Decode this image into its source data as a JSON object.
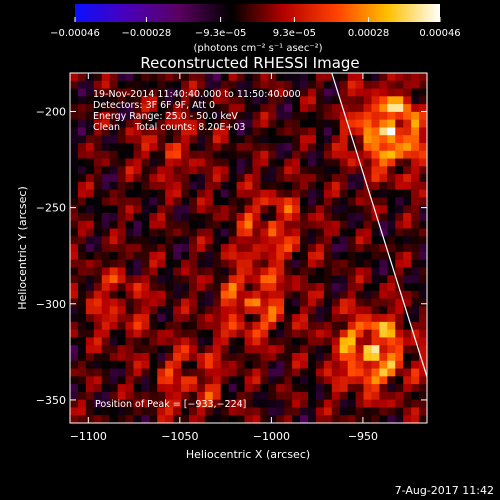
{
  "colorbar": {
    "ticks": [
      "−0.00046",
      "−0.00028",
      "−9.3e−05",
      "9.3e−05",
      "0.00028",
      "0.00046"
    ],
    "tick_values": [
      -0.00046,
      -0.00028,
      -9.3e-05,
      9.3e-05,
      0.00028,
      0.00046
    ],
    "range": [
      -0.00046,
      0.00046
    ],
    "units": "(photons cm⁻² s⁻¹ asec⁻²)",
    "colors": [
      "#0a10ff",
      "#4a00b8",
      "#5a0060",
      "#000000",
      "#b40000",
      "#ff4000",
      "#ffc000",
      "#ffffff"
    ]
  },
  "footer": {
    "date": "7-Aug-2017 11:42"
  },
  "chart_data": {
    "type": "heatmap",
    "title": "Reconstructed RHESSI Image",
    "xlabel": "Heliocentric X (arcsec)",
    "ylabel": "Heliocentric Y (arcsec)",
    "xlim": [
      -1110,
      -915
    ],
    "ylim": [
      -362,
      -180
    ],
    "xticks": [
      -1100,
      -1050,
      -1000,
      -950
    ],
    "yticks": [
      -200,
      -250,
      -300,
      -350
    ],
    "xtick_labels": [
      "−1100",
      "−1050",
      "−1000",
      "−950"
    ],
    "ytick_labels": [
      "−200",
      "−250",
      "−300",
      "−350"
    ],
    "annotations": [
      "19-Nov-2014 11:40:40.000 to 11:50:40.000",
      "Detectors: 3F 6F 9F, Att 0",
      "Energy Range: 25.0 - 50.0 keV",
      "Clean     Total counts: 8.20E+03"
    ],
    "peak_label": "Position of Peak = [−933,−224]",
    "peak": [
      -933,
      -224
    ],
    "bright_sources": [
      {
        "x": -935,
        "y": -210,
        "strength": 1.0
      },
      {
        "x": -945,
        "y": -325,
        "strength": 0.9
      },
      {
        "x": -1010,
        "y": -300,
        "strength": 0.55
      },
      {
        "x": -1000,
        "y": -260,
        "strength": 0.45
      },
      {
        "x": -1045,
        "y": -340,
        "strength": 0.4
      },
      {
        "x": -1085,
        "y": -300,
        "strength": 0.35
      },
      {
        "x": -1055,
        "y": -220,
        "strength": 0.3
      }
    ],
    "limb": [
      [
        -967,
        -180
      ],
      [
        -915,
        -338
      ]
    ]
  }
}
